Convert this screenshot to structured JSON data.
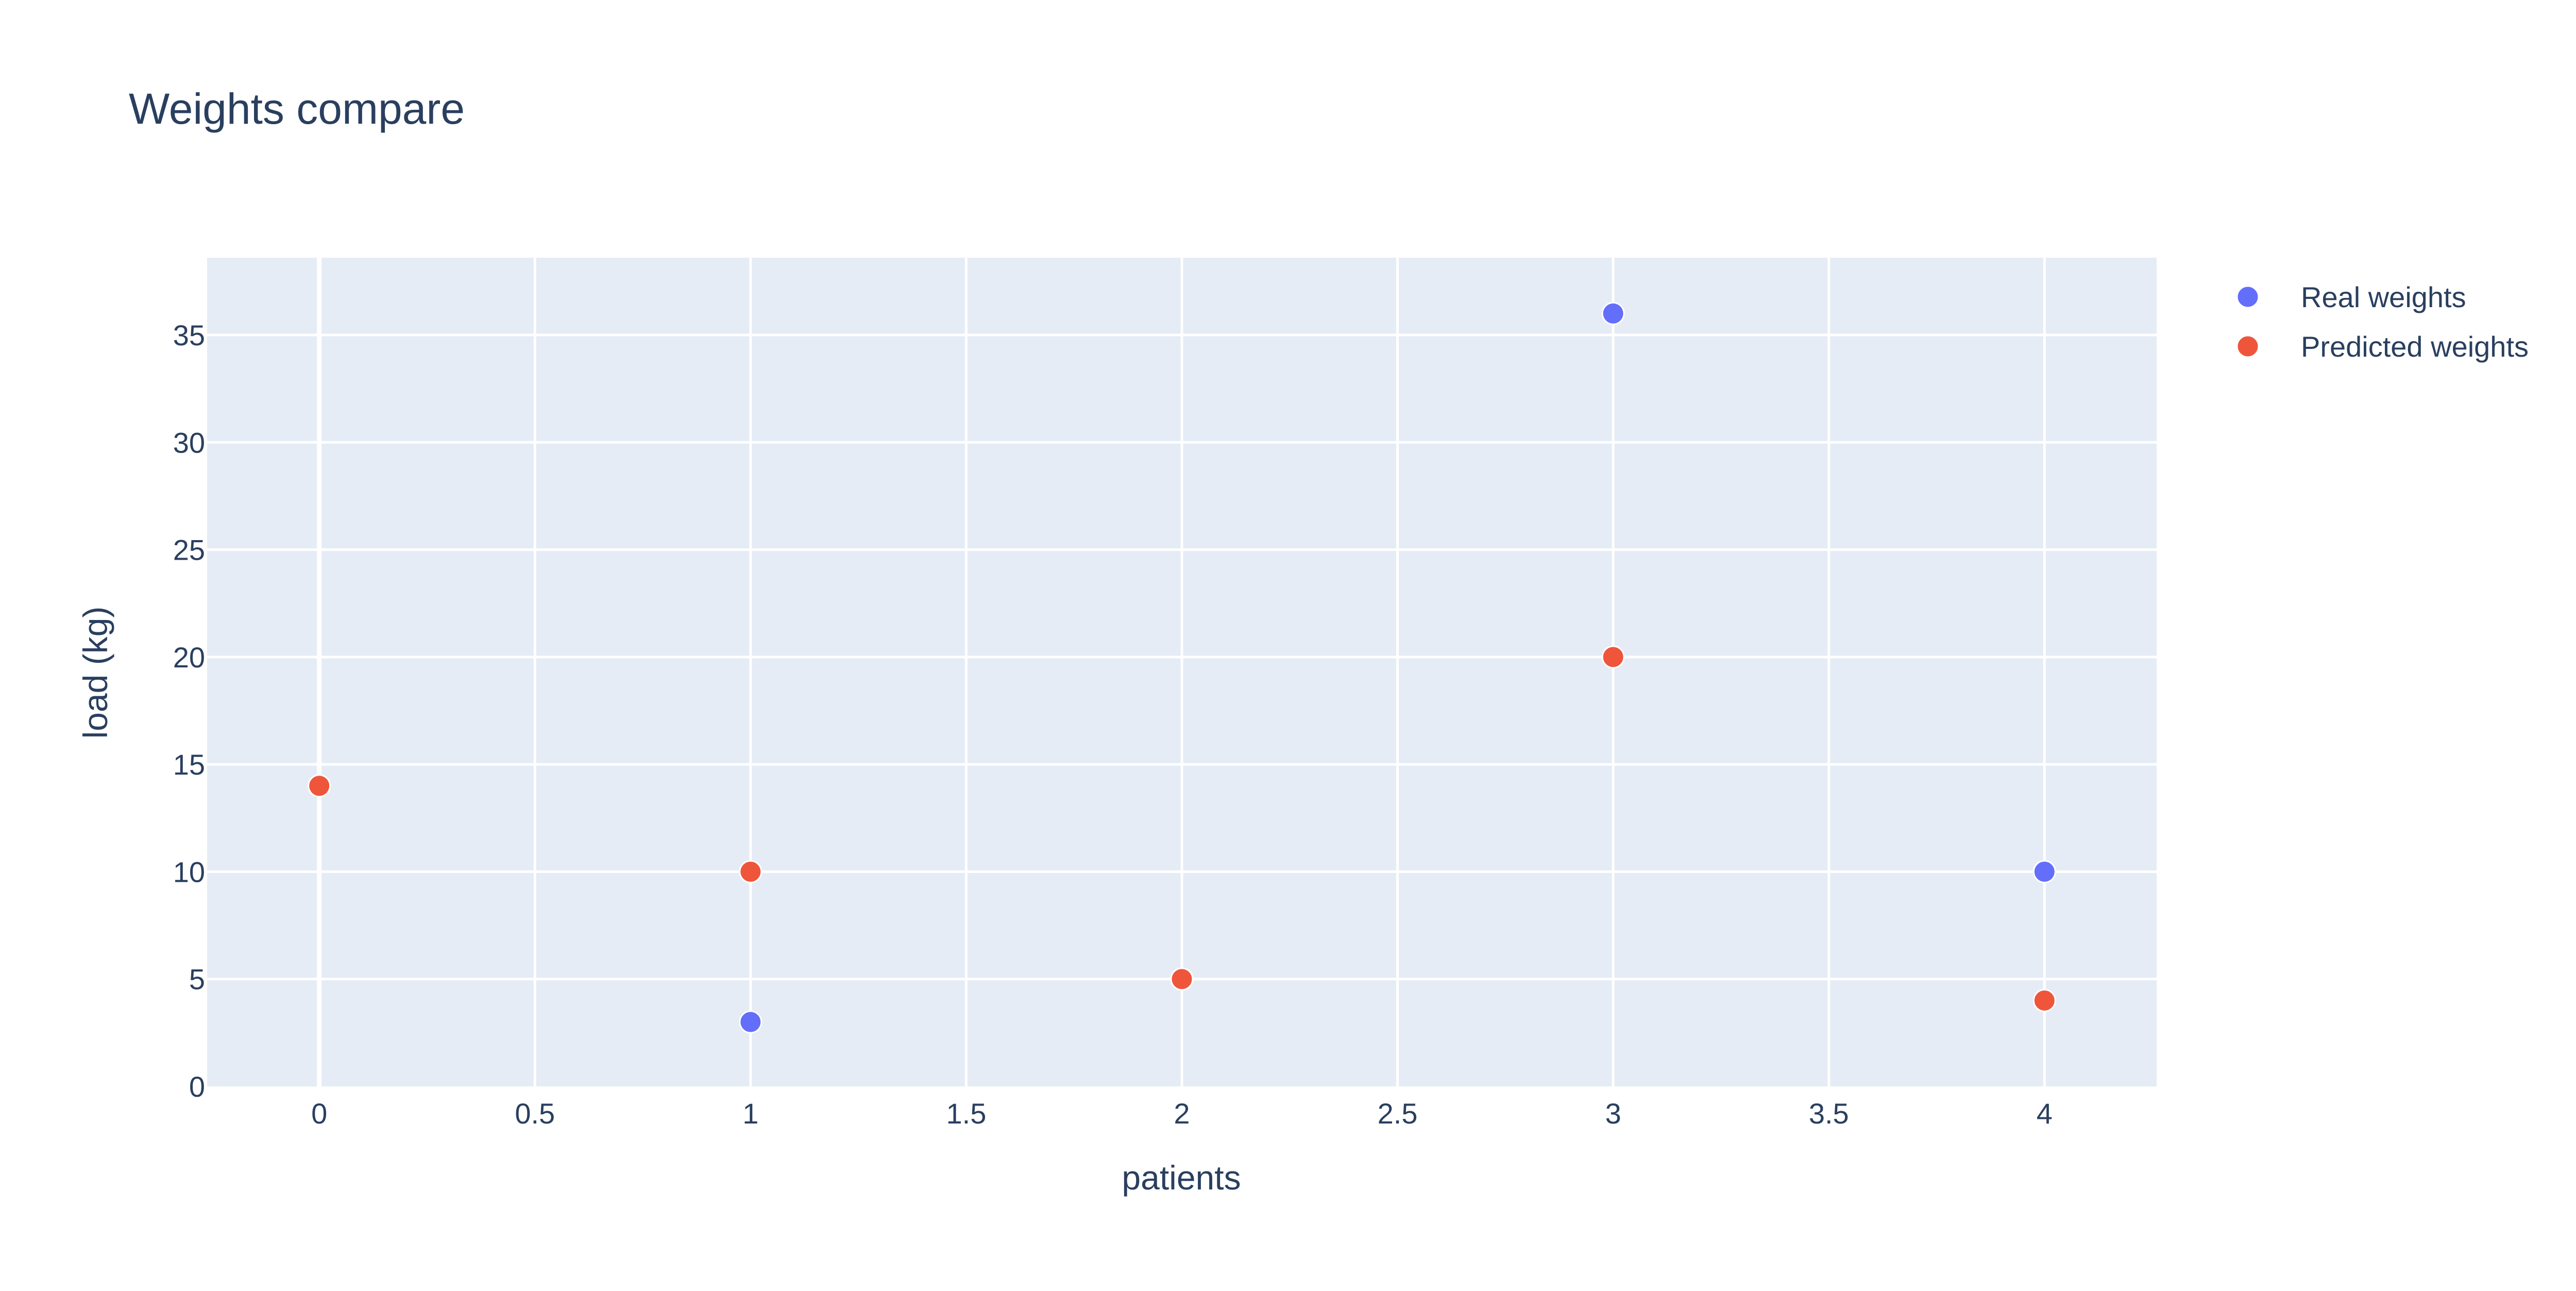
{
  "chart_data": {
    "type": "scatter",
    "title": "Weights compare",
    "xlabel": "patients",
    "ylabel": "load (kg)",
    "xlim": [
      -0.26,
      4.26
    ],
    "ylim": [
      0,
      38.6
    ],
    "x_ticks": [
      0,
      0.5,
      1,
      1.5,
      2,
      2.5,
      3,
      3.5,
      4
    ],
    "y_ticks": [
      0,
      5,
      10,
      15,
      20,
      25,
      30,
      35
    ],
    "grid": true,
    "legend_position": "top-right",
    "plot_background": "#e5ecf6",
    "grid_color": "#ffffff",
    "text_color": "#2a3f5f",
    "series": [
      {
        "name": "Real weights",
        "color": "#636efa",
        "points": [
          {
            "x": 0,
            "y": 14
          },
          {
            "x": 1,
            "y": 3
          },
          {
            "x": 2,
            "y": 5
          },
          {
            "x": 3,
            "y": 36
          },
          {
            "x": 4,
            "y": 10
          }
        ]
      },
      {
        "name": "Predicted weights",
        "color": "#ef553b",
        "points": [
          {
            "x": 0,
            "y": 14
          },
          {
            "x": 1,
            "y": 10
          },
          {
            "x": 2,
            "y": 5
          },
          {
            "x": 3,
            "y": 20
          },
          {
            "x": 4,
            "y": 4
          }
        ]
      }
    ]
  }
}
